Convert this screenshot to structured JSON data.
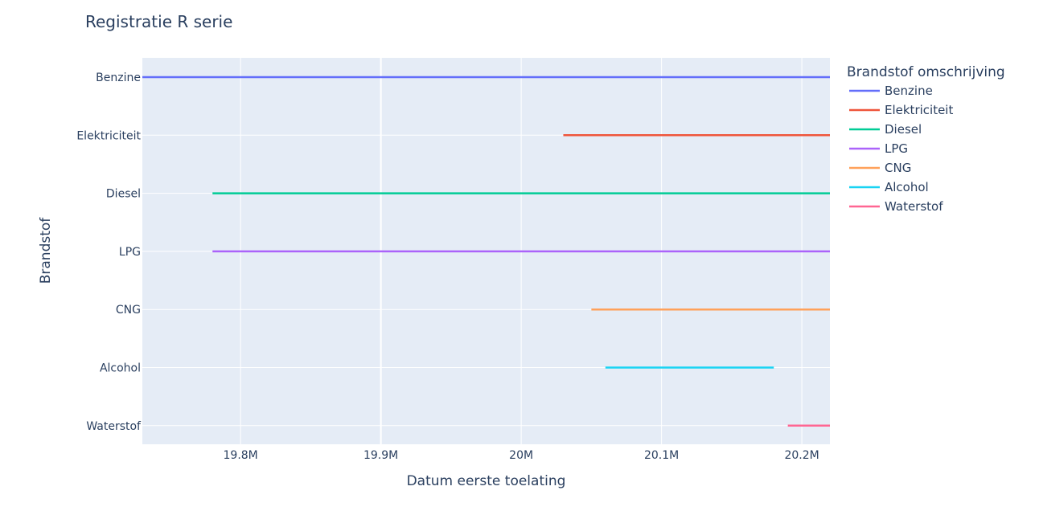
{
  "chart_data": {
    "type": "line",
    "title": "Registratie R serie",
    "xlabel": "Datum eerste toelating",
    "ylabel": "Brandstof",
    "xlim": [
      19730000,
      20220000
    ],
    "x_ticks": [
      19800000,
      19900000,
      20000000,
      20100000,
      20200000
    ],
    "x_tick_labels": [
      "19.8M",
      "19.9M",
      "20M",
      "20.1M",
      "20.2M"
    ],
    "categories": [
      "Benzine",
      "Elektriciteit",
      "Diesel",
      "LPG",
      "CNG",
      "Alcohol",
      "Waterstof"
    ],
    "legend_title": "Brandstof omschrijving",
    "legend_position": "right",
    "grid": true,
    "series": [
      {
        "name": "Benzine",
        "color": "#636efa",
        "category": "Benzine",
        "x": [
          19730000,
          20220000
        ]
      },
      {
        "name": "Elektriciteit",
        "color": "#ef553b",
        "category": "Elektriciteit",
        "x": [
          20030000,
          20220000
        ]
      },
      {
        "name": "Diesel",
        "color": "#00cc96",
        "category": "Diesel",
        "x": [
          19780000,
          20220000
        ]
      },
      {
        "name": "LPG",
        "color": "#ab63fa",
        "category": "LPG",
        "x": [
          19780000,
          20220000
        ]
      },
      {
        "name": "CNG",
        "color": "#ffa15a",
        "category": "CNG",
        "x": [
          20050000,
          20220000
        ]
      },
      {
        "name": "Alcohol",
        "color": "#19d3f3",
        "category": "Alcohol",
        "x": [
          20060000,
          20180000
        ]
      },
      {
        "name": "Waterstof",
        "color": "#ff6692",
        "category": "Waterstof",
        "x": [
          20190000,
          20220000
        ]
      }
    ]
  }
}
